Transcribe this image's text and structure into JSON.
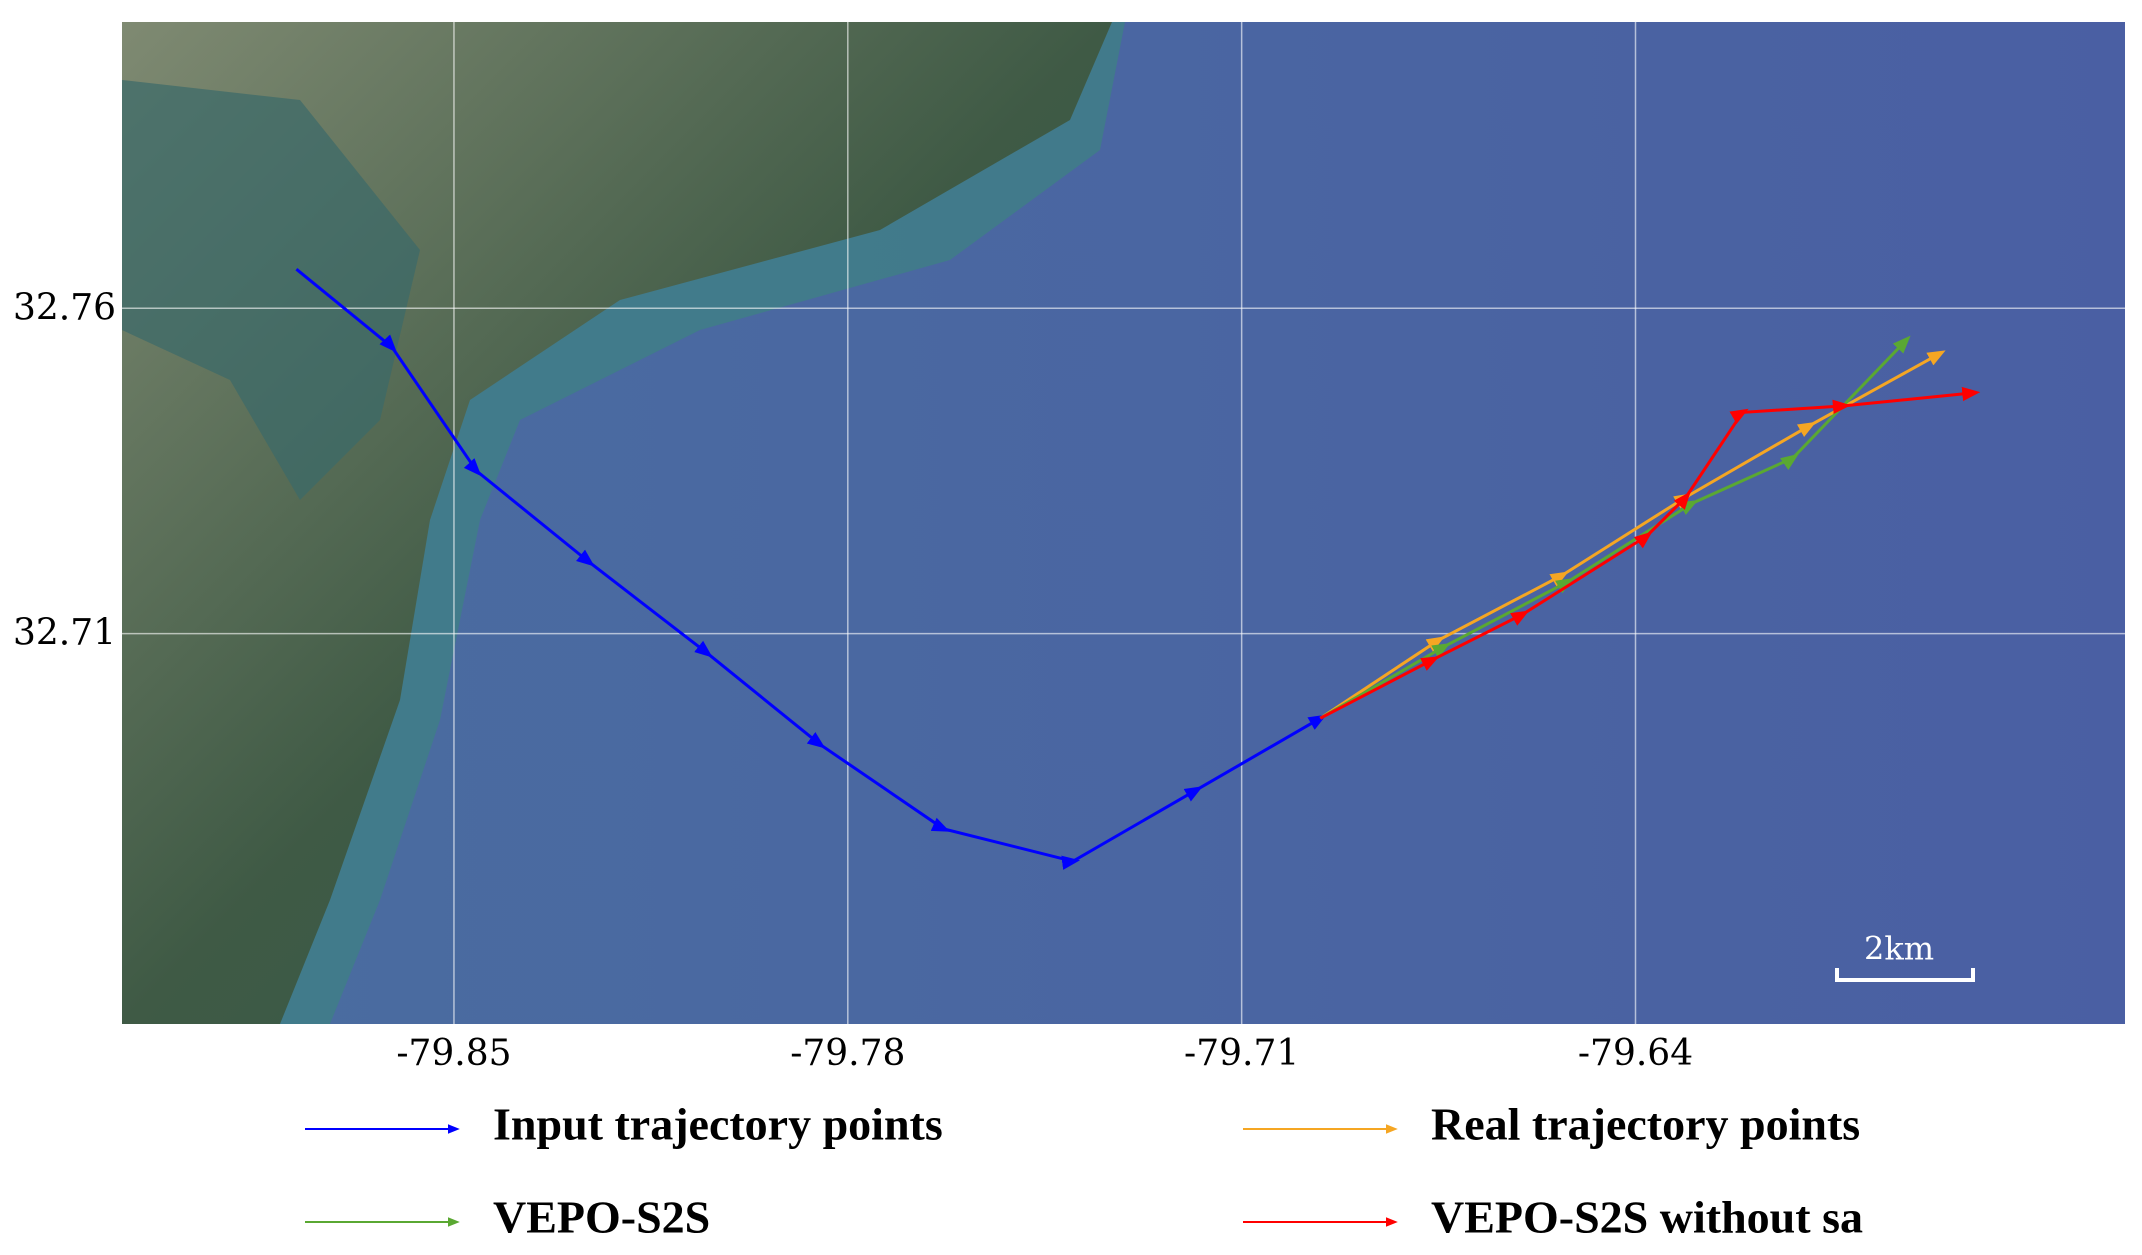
{
  "chart_data": {
    "type": "line",
    "annotation": "2km",
    "xlim": [
      -79.909,
      -79.553
    ],
    "ylim": [
      32.65,
      32.804
    ],
    "xticks": [
      -79.85,
      -79.78,
      -79.71,
      -79.64
    ],
    "yticks": [
      32.76,
      32.71
    ],
    "grid": true,
    "series": [
      {
        "name": "Input trajectory points",
        "color": "#0000ff",
        "x": [
          -79.878,
          -79.861,
          -79.846,
          -79.826,
          -79.805,
          -79.785,
          -79.763,
          -79.74,
          -79.718,
          -79.696
        ],
        "values": [
          32.766,
          32.754,
          32.735,
          32.721,
          32.707,
          32.693,
          32.68,
          32.675,
          32.686,
          32.697
        ]
      },
      {
        "name": "Real trajectory points",
        "color": "#f5a623",
        "x": [
          -79.696,
          -79.675,
          -79.653,
          -79.631,
          -79.609,
          -79.586
        ],
        "values": [
          32.697,
          32.709,
          32.719,
          32.731,
          32.742,
          32.753
        ]
      },
      {
        "name": "VEPO-S2S",
        "color": "#5aa832",
        "x": [
          -79.696,
          -79.674,
          -79.652,
          -79.63,
          -79.612,
          -79.592
        ],
        "values": [
          32.697,
          32.708,
          32.718,
          32.73,
          32.737,
          32.755
        ]
      },
      {
        "name": "VEPO-S2S without sa",
        "color": "#ff0000",
        "x": [
          -79.696,
          -79.676,
          -79.66,
          -79.638,
          -79.631,
          -79.621,
          -79.603,
          -79.58
        ],
        "values": [
          32.697,
          32.706,
          32.713,
          32.725,
          32.731,
          32.744,
          32.745,
          32.747
        ]
      }
    ]
  }
}
